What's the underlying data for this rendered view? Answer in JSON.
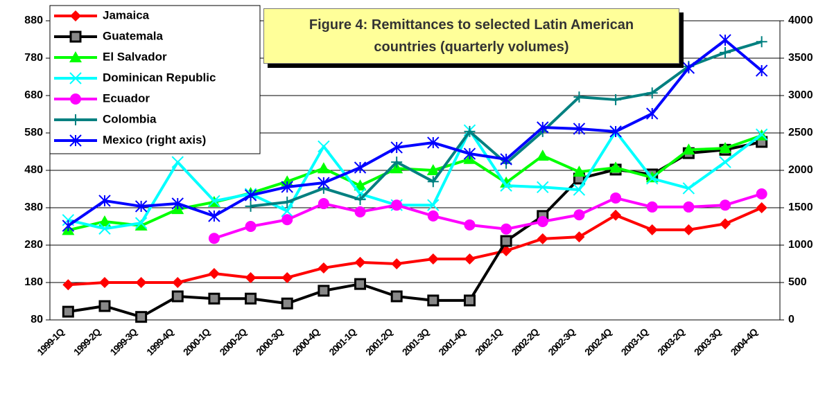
{
  "chart_data": {
    "type": "line",
    "title": "Figure 4: Remittances to selected Latin American countries (quarterly volumes)",
    "categories": [
      "1999-1Q",
      "1999-2Q",
      "1999-3Q",
      "1999-4Q",
      "2000-1Q",
      "2000-2Q",
      "2000-3Q",
      "2000-4Q",
      "2001-1Q",
      "2001-2Q",
      "2001-3Q",
      "2001-4Q",
      "2002-1Q",
      "2002-2Q",
      "2002-3Q",
      "2002-4Q",
      "2003-1Q",
      "2003-2Q",
      "2003-3Q",
      "2004-4Q"
    ],
    "ylim": [
      80,
      880
    ],
    "yticks": [
      80,
      180,
      280,
      380,
      480,
      580,
      680,
      780,
      880
    ],
    "y2lim": [
      0,
      4000
    ],
    "y2ticks": [
      0,
      500,
      1000,
      1500,
      2000,
      2500,
      3000,
      3500,
      4000
    ],
    "grid": true,
    "legend": "top-left",
    "series": [
      {
        "name": "Jamaica",
        "color": "#ff0000",
        "marker": "diamond",
        "values": [
          174,
          180,
          180,
          180,
          204,
          193,
          193,
          219,
          234,
          230,
          243,
          243,
          265,
          297,
          302,
          360,
          321,
          321,
          337,
          380
        ]
      },
      {
        "name": "Guatemala",
        "color": "#000000",
        "marker": "square",
        "values": [
          102,
          117,
          88,
          143,
          137,
          137,
          124,
          158,
          176,
          143,
          132,
          132,
          291,
          358,
          458,
          482,
          469,
          526,
          535,
          556
        ]
      },
      {
        "name": "El Salvador",
        "color": "#00ff00",
        "marker": "triangle",
        "values": [
          320,
          343,
          332,
          376,
          395,
          419,
          450,
          485,
          439,
          485,
          480,
          510,
          447,
          519,
          476,
          487,
          461,
          535,
          539,
          573
        ]
      },
      {
        "name": "Dominican Republic",
        "color": "#00ffff",
        "marker": "x",
        "values": [
          347,
          324,
          339,
          502,
          398,
          417,
          371,
          544,
          417,
          387,
          387,
          587,
          439,
          435,
          428,
          584,
          458,
          432,
          502,
          576
        ]
      },
      {
        "name": "Ecuador",
        "color": "#ff00ff",
        "marker": "circle",
        "values": [
          null,
          null,
          null,
          null,
          298,
          330,
          348,
          391,
          369,
          387,
          358,
          334,
          323,
          343,
          361,
          406,
          382,
          382,
          387,
          417
        ]
      },
      {
        "name": "Colombia",
        "color": "#008080",
        "marker": "plus",
        "values": [
          null,
          null,
          null,
          null,
          null,
          384,
          395,
          432,
          402,
          502,
          450,
          584,
          499,
          584,
          676,
          669,
          687,
          758,
          795,
          824
        ]
      },
      {
        "name": "Mexico (right axis)",
        "color": "#0000ff",
        "marker": "star",
        "axis": "y2",
        "values": [
          1259,
          1593,
          1519,
          1556,
          1389,
          1667,
          1778,
          1833,
          2037,
          2306,
          2370,
          2222,
          2148,
          2574,
          2556,
          2519,
          2759,
          3370,
          3741,
          3333
        ]
      }
    ]
  }
}
